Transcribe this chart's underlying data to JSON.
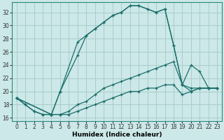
{
  "xlabel": "Humidex (Indice chaleur)",
  "ylabel": "",
  "bg_color": "#cce8e8",
  "grid_color": "#aacccc",
  "line_color": "#1a6e6a",
  "xlim": [
    -0.5,
    23.5
  ],
  "ylim": [
    15.5,
    33.5
  ],
  "xticks": [
    0,
    1,
    2,
    3,
    4,
    5,
    6,
    7,
    8,
    9,
    10,
    11,
    12,
    13,
    14,
    15,
    16,
    17,
    18,
    19,
    20,
    21,
    22,
    23
  ],
  "yticks": [
    16,
    18,
    20,
    22,
    24,
    26,
    28,
    30,
    32
  ],
  "lines": [
    {
      "x": [
        0,
        1,
        2,
        3,
        4,
        5,
        7,
        8,
        9,
        10,
        11,
        12,
        13,
        14,
        15,
        16,
        17,
        18,
        19,
        20,
        21,
        22,
        23
      ],
      "y": [
        19,
        18,
        17,
        16.5,
        16.5,
        20,
        27.5,
        28.5,
        29.5,
        30.5,
        31.5,
        32,
        33,
        33,
        32.5,
        32,
        32.5,
        27,
        21,
        20.5,
        20.5,
        20.5,
        20.5
      ]
    },
    {
      "x": [
        0,
        1,
        2,
        3,
        4,
        5,
        7,
        8,
        9,
        10,
        11,
        12,
        13,
        14,
        15,
        16,
        17,
        18,
        19,
        20,
        21,
        22,
        23
      ],
      "y": [
        19,
        18,
        17,
        16.5,
        16.5,
        20,
        25.5,
        28.5,
        29.5,
        30.5,
        31.5,
        32,
        33,
        33,
        32.5,
        32,
        32.5,
        27,
        21,
        24,
        23,
        20.5,
        20.5
      ]
    },
    {
      "x": [
        0,
        4,
        5,
        6,
        7,
        8,
        9,
        10,
        11,
        12,
        13,
        14,
        15,
        16,
        17,
        18,
        19,
        20,
        21,
        22,
        23
      ],
      "y": [
        19,
        16.5,
        16.5,
        17,
        18,
        18.5,
        19.5,
        20.5,
        21,
        21.5,
        22,
        22.5,
        23,
        23.5,
        24,
        24.5,
        21,
        20,
        20.5,
        20.5,
        20.5
      ]
    },
    {
      "x": [
        0,
        4,
        5,
        6,
        7,
        8,
        9,
        10,
        11,
        12,
        13,
        14,
        15,
        16,
        17,
        18,
        19,
        20,
        21,
        22,
        23
      ],
      "y": [
        19,
        16.5,
        16.5,
        16.5,
        17,
        17.5,
        18,
        18.5,
        19,
        19.5,
        20,
        20,
        20.5,
        20.5,
        21,
        21,
        19.5,
        20,
        20.5,
        20.5,
        20.5
      ]
    }
  ]
}
